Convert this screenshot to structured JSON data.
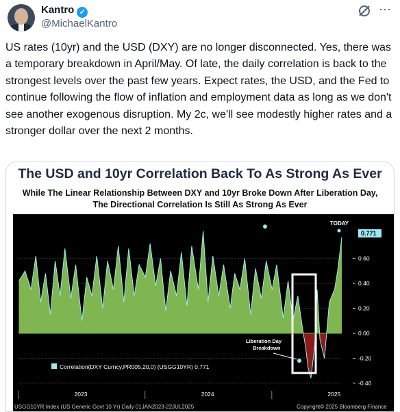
{
  "author": {
    "name": "Kantro",
    "handle": "@MichaelKantro"
  },
  "tweet": {
    "text": "US rates (10yr) and the USD (DXY) are no longer disconnected. Yes, there was a temporary breakdown in April/May. Of late, the daily correlation is back to the strongest levels over the past few years. Expect rates, the USD, and the Fed to continue following the flow of inflation and employment data as long as we don't see another exogenous disruption. My 2c, we'll see modestly higher rates and a stronger dollar over the next 2 months."
  },
  "icons": {
    "grok": "grok-icon",
    "more": "more-icon",
    "verified": "verified-badge-icon"
  },
  "colors": {
    "verified": "#1d9bf0",
    "area": "#7fb651",
    "breakdown_fill": "#8b1a1a",
    "highlight_line": "#9ee8f2",
    "box": "#ffffff"
  },
  "chart_data": {
    "type": "area",
    "title": "The USD and 10yr Correlation Back To As Strong As Ever",
    "subtitle_line1": "While The Linear Relationship Between DXY and 10yr Broke Down After Liberation Day,",
    "subtitle_line2": "The Directional Correlation Is Still As Strong As Ever",
    "legend": "Correlation(DXY Curncy,PR005,20,0) (USGG10YR) 0.771",
    "current_value_label": "0.771",
    "today_label": "TODAY",
    "annotation_line1": "Liberation Day",
    "annotation_line2": "Breakdown",
    "footer_left": "USGG10YR Index (US Generic Govt 10 Yr)  Daily 01JAN2023-22JUL2025",
    "footer_right": "Copyright© 2025 Bloomberg Finance",
    "x_tick_labels": [
      "2023",
      "2024",
      "2025"
    ],
    "y_ticks": [
      0.6,
      0.4,
      0.2,
      0.0,
      -0.2,
      -0.4
    ],
    "y_tick_labels": [
      "0.60",
      "0.40",
      "0.20",
      "0.00",
      "-0.20",
      "-0.40"
    ],
    "ylim": [
      -0.45,
      0.9
    ],
    "x_range": [
      "2023-01-01",
      "2025-07-22"
    ],
    "series": [
      {
        "dates": [
          "2023-01-02",
          "2023-01-20",
          "2023-02-06",
          "2023-02-20",
          "2023-03-06",
          "2023-03-20",
          "2023-04-03",
          "2023-04-17",
          "2023-05-01",
          "2023-05-15",
          "2023-06-01",
          "2023-06-15",
          "2023-07-03",
          "2023-07-17",
          "2023-08-01",
          "2023-08-15",
          "2023-09-01",
          "2023-09-15",
          "2023-10-02",
          "2023-10-16",
          "2023-11-01",
          "2023-11-15",
          "2023-12-01",
          "2023-12-15",
          "2024-01-02",
          "2024-01-16",
          "2024-02-01",
          "2024-02-15",
          "2024-03-01",
          "2024-03-15",
          "2024-04-01",
          "2024-04-15",
          "2024-05-01",
          "2024-05-15",
          "2024-06-03",
          "2024-06-17",
          "2024-07-01",
          "2024-07-15",
          "2024-08-01",
          "2024-08-15",
          "2024-09-03",
          "2024-09-16",
          "2024-10-01",
          "2024-10-15",
          "2024-11-01",
          "2024-11-15",
          "2024-12-02",
          "2024-12-16",
          "2025-01-02",
          "2025-01-15",
          "2025-02-03",
          "2025-02-17",
          "2025-03-03",
          "2025-03-17",
          "2025-04-01",
          "2025-04-09",
          "2025-04-16",
          "2025-04-24",
          "2025-05-05",
          "2025-05-12",
          "2025-05-20",
          "2025-06-02",
          "2025-06-16",
          "2025-07-01",
          "2025-07-10",
          "2025-07-22"
        ],
        "values": [
          0.42,
          0.5,
          0.35,
          0.62,
          0.25,
          0.48,
          0.15,
          0.58,
          0.3,
          0.68,
          0.28,
          0.55,
          0.1,
          0.45,
          0.3,
          0.62,
          0.2,
          0.58,
          0.35,
          0.7,
          0.25,
          0.68,
          0.3,
          0.55,
          0.45,
          0.72,
          0.38,
          0.6,
          0.18,
          0.5,
          0.3,
          0.65,
          0.22,
          0.7,
          0.35,
          0.82,
          0.25,
          0.62,
          0.3,
          0.55,
          0.2,
          0.48,
          0.35,
          0.6,
          0.15,
          0.52,
          0.28,
          0.58,
          0.35,
          0.55,
          0.12,
          0.42,
          0.1,
          0.3,
          0.02,
          -0.12,
          -0.28,
          -0.36,
          -0.1,
          0.35,
          -0.05,
          -0.2,
          0.25,
          0.35,
          0.5,
          0.771
        ]
      }
    ]
  }
}
